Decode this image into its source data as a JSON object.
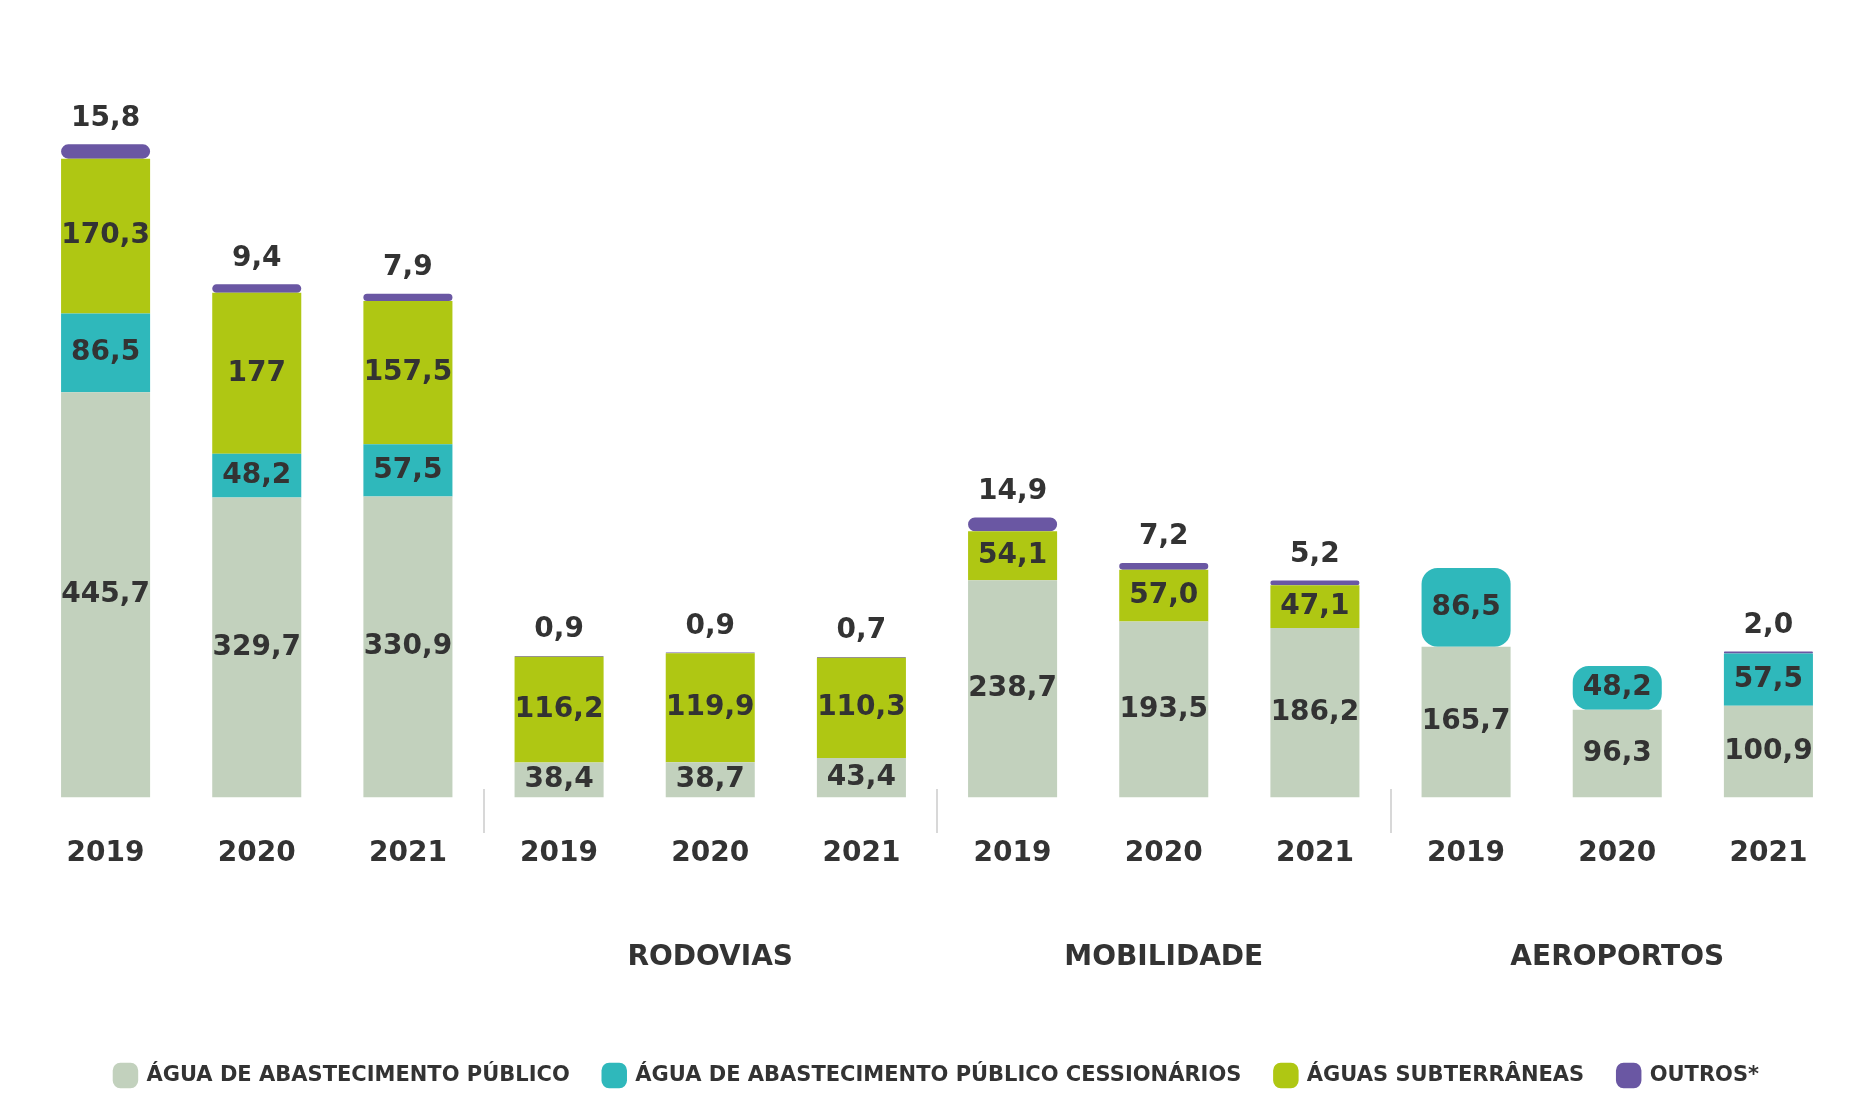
{
  "chart_data": {
    "type": "bar",
    "stacked": true,
    "categories": [
      "2019",
      "2020",
      "2021",
      "2019",
      "2020",
      "2021",
      "2019",
      "2020",
      "2021",
      "2019",
      "2020",
      "2021"
    ],
    "series": [
      {
        "name": "ÁGUA DE ABASTECIMENTO PÚBLICO",
        "color": "#c2d1bd",
        "values": [
          445.7,
          329.7,
          330.9,
          38.4,
          38.7,
          43.4,
          238.7,
          193.5,
          186.2,
          165.7,
          96.3,
          100.9
        ],
        "value_labels": [
          "445,7",
          "329,7",
          "330,9",
          "38,4",
          "38,7",
          "43,4",
          "238,7",
          "193,5",
          "186,2",
          "165,7",
          "96,3",
          "100,9"
        ]
      },
      {
        "name": "ÁGUA DE ABASTECIMENTO PÚBLICO CESSIONÁRIOS",
        "color": "#2fb8bb",
        "values": [
          86.5,
          48.2,
          57.5,
          null,
          null,
          null,
          null,
          null,
          null,
          86.5,
          48.2,
          57.5
        ],
        "value_labels": [
          "86,5",
          "48,2",
          "57,5",
          null,
          null,
          null,
          null,
          null,
          null,
          "86,5",
          "48,2",
          "57,5"
        ]
      },
      {
        "name": "ÁGUAS SUBTERRÂNEAS",
        "color": "#afc713",
        "values": [
          170.3,
          177,
          157.5,
          116.2,
          119.9,
          110.3,
          54.1,
          57.0,
          47.1,
          null,
          null,
          null
        ],
        "value_labels": [
          "170,3",
          "177",
          "157,5",
          "116,2",
          "119,9",
          "110,3",
          "54,1",
          "57,0",
          "47,1",
          null,
          null,
          null
        ]
      },
      {
        "name": "OUTROS*",
        "color": "#6a57a3",
        "values": [
          15.8,
          9.4,
          7.9,
          0.9,
          0.9,
          0.7,
          14.9,
          7.2,
          5.2,
          null,
          null,
          2.0
        ],
        "value_labels": [
          "15,8",
          "9,4",
          "7,9",
          "0,9",
          "0,9",
          "0,7",
          "14,9",
          "7,2",
          "5,2",
          null,
          null,
          "2,0"
        ]
      }
    ],
    "annotations": [
      "RODOVIAS",
      "MOBILIDADE",
      "AEROPORTOS"
    ],
    "grid": false,
    "legend": "bottom"
  }
}
